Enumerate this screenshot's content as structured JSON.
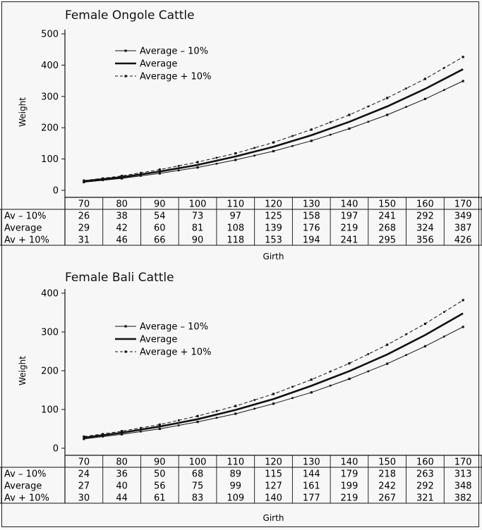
{
  "chart_data": [
    {
      "type": "line",
      "title": "Female Ongole Cattle",
      "xlabel": "Girth",
      "ylabel": "Weight",
      "ylim": [
        0,
        500
      ],
      "yticks": [
        0,
        100,
        200,
        300,
        400,
        500
      ],
      "x": [
        70,
        80,
        90,
        100,
        110,
        120,
        130,
        140,
        150,
        160,
        170
      ],
      "legend_position": "upper-left",
      "series": [
        {
          "name": "Average – 10%",
          "row_label": "Av – 10%",
          "style": "dotted-marker",
          "values": [
            26,
            38,
            54,
            73,
            97,
            125,
            158,
            197,
            241,
            292,
            349
          ]
        },
        {
          "name": "Average",
          "row_label": "Average",
          "style": "bold",
          "values": [
            29,
            42,
            60,
            81,
            108,
            139,
            176,
            219,
            268,
            324,
            387
          ]
        },
        {
          "name": "Average + 10%",
          "row_label": "Av + 10%",
          "style": "dashed-marker",
          "values": [
            31,
            46,
            66,
            90,
            118,
            153,
            194,
            241,
            295,
            356,
            426
          ]
        }
      ]
    },
    {
      "type": "line",
      "title": "Female Bali Cattle",
      "xlabel": "Girth",
      "ylabel": "Weight",
      "ylim": [
        0,
        400
      ],
      "yticks": [
        0,
        100,
        200,
        300,
        400
      ],
      "x": [
        70,
        80,
        90,
        100,
        110,
        120,
        130,
        140,
        150,
        160,
        170
      ],
      "legend_position": "upper-left",
      "series": [
        {
          "name": "Average – 10%",
          "row_label": "Av – 10%",
          "style": "dotted-marker",
          "values": [
            24,
            36,
            50,
            68,
            89,
            115,
            144,
            179,
            218,
            263,
            313
          ]
        },
        {
          "name": "Average",
          "row_label": "Average",
          "style": "bold",
          "values": [
            27,
            40,
            56,
            75,
            99,
            127,
            161,
            199,
            242,
            292,
            348
          ]
        },
        {
          "name": "Average + 10%",
          "row_label": "Av + 10%",
          "style": "dashed-marker",
          "values": [
            30,
            44,
            61,
            83,
            109,
            140,
            177,
            219,
            267,
            321,
            382
          ]
        }
      ]
    }
  ]
}
